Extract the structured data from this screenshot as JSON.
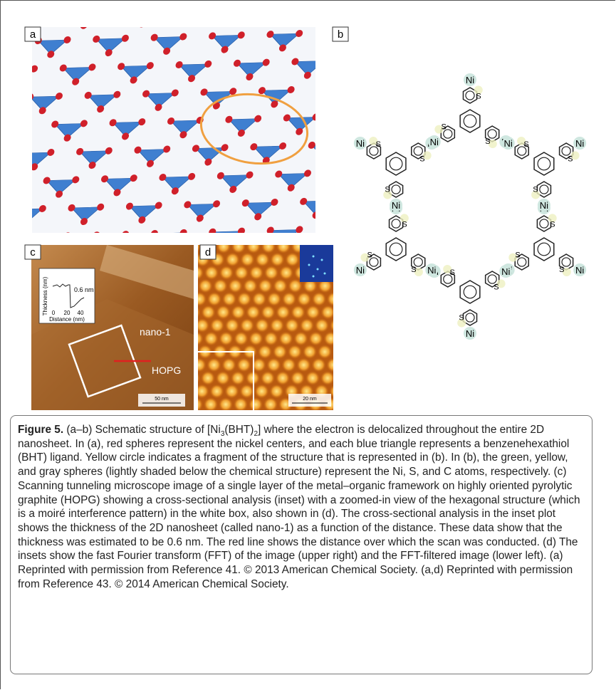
{
  "panels": {
    "a": "a",
    "b": "b",
    "c": "c",
    "d": "d"
  },
  "inset_c": {
    "y_label": "Thickness (nm)",
    "annotation": "0.6 nm",
    "x_ticks": [
      "0",
      "20",
      "40"
    ],
    "x_label": "Distance (nm)"
  },
  "labels_c": {
    "sample": "nano-1",
    "substrate": "HOPG",
    "scale": "50 nm"
  },
  "labels_d": {
    "scale": "20 nm"
  },
  "structure": {
    "metal": "Ni",
    "sulfur": "S"
  },
  "caption": {
    "label": "Figure 5.",
    "segments": [
      "(a–b) Schematic structure of [Ni",
      "3",
      "(BHT)",
      "2",
      "] where the electron is delocalized throughout the entire 2D nanosheet. In (a), red spheres represent the nickel centers, and each blue triangle represents a benzenehexathiol (BHT) ligand. Yellow circle indicates a fragment of the structure that is represented in (b). In (b), the green, yellow, and gray spheres (lightly shaded below the chemical structure) represent the Ni, S, and C atoms, respectively. (c) Scanning tunneling microscope image of a single layer of the metal–organic framework on highly oriented pyrolytic graphite (HOPG) showing a cross-sectional analysis (inset) with a zoomed-in view of the hexagonal structure (which is a moiré interference pattern) in the white box, also shown in (d). The cross-sectional analysis in the inset plot shows the thickness of the 2D nanosheet (called nano-1) as a function of the distance. These data show that the thickness was estimated to be 0.6 nm. The red line shows the distance over which the scan was conducted. (d) The insets show the fast Fourier transform (FFT) of the image (upper right) and the FFT-filtered image (lower left). (a) Reprinted with permission from Reference 41. © 2013 American Chemical Society. (a,d) Reprinted with permission from Reference 43. © 2014 American Chemical Society."
    ]
  }
}
